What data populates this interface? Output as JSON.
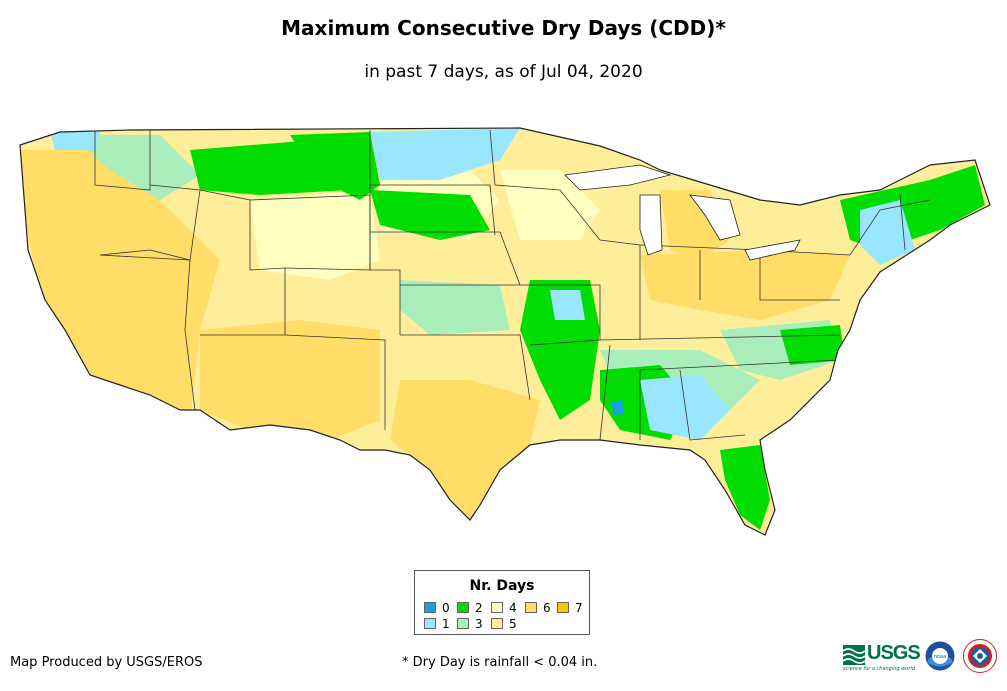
{
  "title": "Maximum Consecutive Dry Days (CDD)*",
  "subtitle": "in past 7 days, as of Jul 04, 2020",
  "legend": {
    "title": "Nr. Days",
    "items": [
      {
        "label": "0",
        "color": "#1a9ee6"
      },
      {
        "label": "1",
        "color": "#99e6ff"
      },
      {
        "label": "2",
        "color": "#00dd00"
      },
      {
        "label": "3",
        "color": "#aaeebb"
      },
      {
        "label": "4",
        "color": "#ffffc0"
      },
      {
        "label": "5",
        "color": "#ffee99"
      },
      {
        "label": "6",
        "color": "#ffdd66"
      },
      {
        "label": "7",
        "color": "#ffc400"
      }
    ]
  },
  "credit": "Map Produced by USGS/EROS",
  "footnote": "* Dry Day is rainfall < 0.04 in.",
  "logos": {
    "usgs_text": "USGS",
    "usgs_tagline": "science for a changing world",
    "noaa_text": "noaa"
  }
}
